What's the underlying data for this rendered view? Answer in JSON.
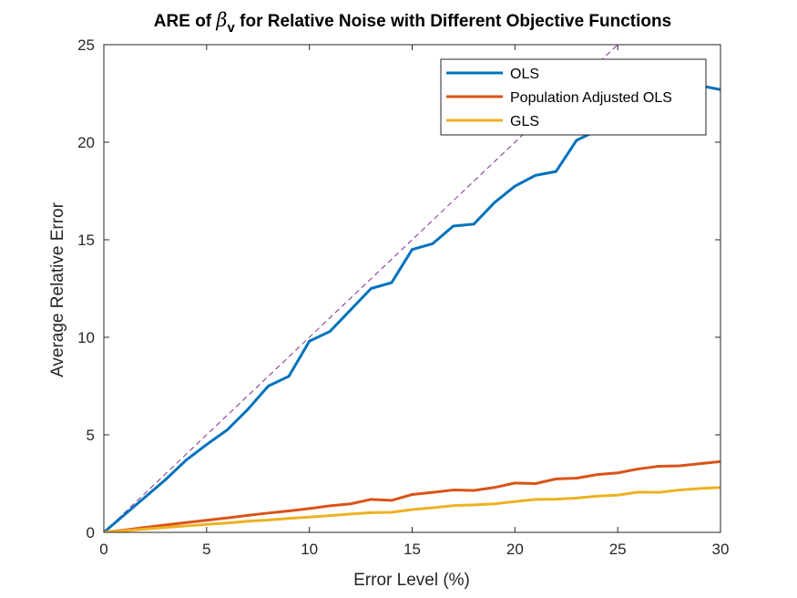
{
  "chart_data": {
    "type": "line",
    "title": {
      "prefix": "ARE of ",
      "symbol": "β",
      "subscript": "v",
      "suffix": " for Relative Noise with Different Objective Functions"
    },
    "xlabel": "Error Level (%)",
    "ylabel": "Average Relative Error",
    "xlim": [
      0,
      30
    ],
    "ylim": [
      0,
      25
    ],
    "xticks": [
      0,
      5,
      10,
      15,
      20,
      25,
      30
    ],
    "yticks": [
      0,
      5,
      10,
      15,
      20,
      25
    ],
    "grid": false,
    "legend_position": "top-right",
    "x": [
      0,
      1,
      2,
      3,
      4,
      5,
      6,
      7,
      8,
      9,
      10,
      11,
      12,
      13,
      14,
      15,
      16,
      17,
      18,
      19,
      20,
      21,
      22,
      23,
      24,
      25,
      26,
      27,
      28,
      29,
      30
    ],
    "series": [
      {
        "name": "OLS",
        "color": "#0072BD",
        "values": [
          0,
          0.9,
          1.8,
          2.7,
          3.7,
          4.5,
          5.25,
          6.3,
          7.5,
          8.0,
          9.8,
          10.3,
          11.4,
          12.5,
          12.8,
          14.5,
          14.8,
          15.7,
          15.8,
          16.9,
          17.75,
          18.3,
          18.5,
          20.1,
          20.6,
          21.5,
          22.3,
          22.7,
          23.0,
          22.9,
          22.7
        ]
      },
      {
        "name": "Population Adjusted OLS",
        "color": "#D95319",
        "values": [
          0,
          0.12,
          0.25,
          0.38,
          0.5,
          0.62,
          0.74,
          0.87,
          0.99,
          1.1,
          1.22,
          1.36,
          1.46,
          1.69,
          1.64,
          1.94,
          2.05,
          2.17,
          2.15,
          2.3,
          2.53,
          2.5,
          2.74,
          2.78,
          2.96,
          3.05,
          3.25,
          3.39,
          3.41,
          3.52,
          3.63
        ]
      },
      {
        "name": "GLS",
        "color": "#EDB120",
        "values": [
          0,
          0.09,
          0.17,
          0.25,
          0.33,
          0.41,
          0.48,
          0.57,
          0.63,
          0.72,
          0.78,
          0.86,
          0.94,
          1.01,
          1.03,
          1.17,
          1.26,
          1.37,
          1.41,
          1.46,
          1.58,
          1.69,
          1.7,
          1.76,
          1.86,
          1.91,
          2.06,
          2.05,
          2.17,
          2.25,
          2.3
        ]
      }
    ],
    "reference_line": {
      "style": "dashed",
      "color": "#7E2F8E",
      "x": [
        0,
        25
      ],
      "y": [
        0,
        25
      ]
    }
  }
}
